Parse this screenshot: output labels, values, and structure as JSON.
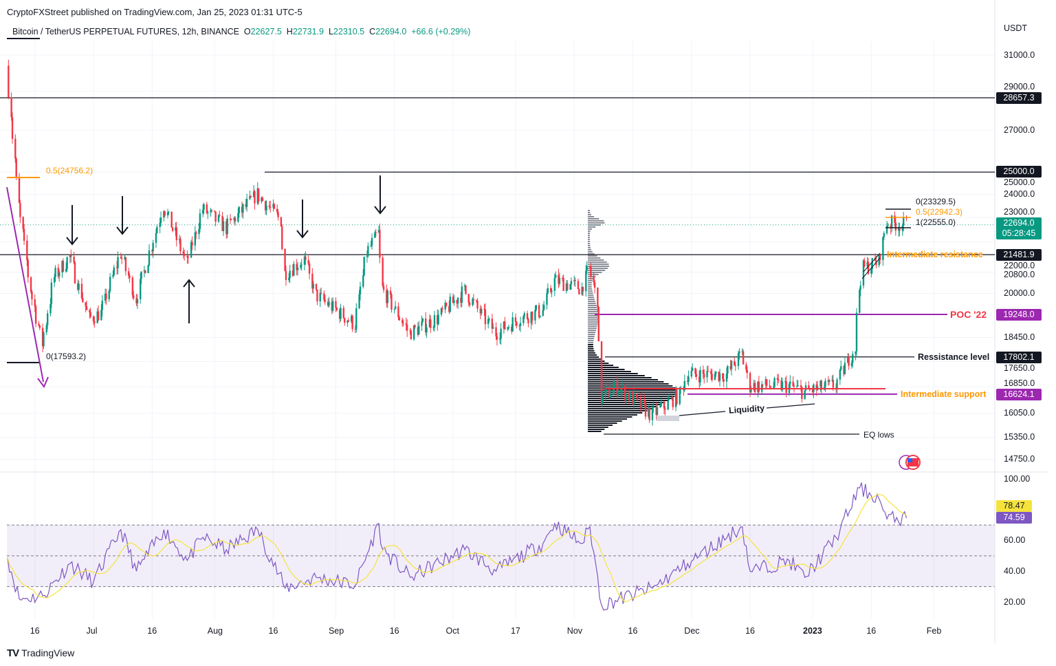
{
  "header": {
    "publisher": "CryptoFXStreet published on TradingView.com, Jan 25, 2023 01:31 UTC-5",
    "symbol": "Bitcoin / TetherUS PERPETUAL FUTURES, 12h, BINANCE",
    "open_label": "O",
    "open": "22627.5",
    "high_label": "H",
    "high": "22731.9",
    "low_label": "L",
    "low": "22310.5",
    "close_label": "C",
    "close": "22694.0",
    "change": "+66.6 (+0.29%)"
  },
  "footer": {
    "brand": "TradingView"
  },
  "colors": {
    "up": "#089981",
    "down": "#f23645",
    "rsi": "#7e57c2",
    "rsi_ma": "#f5e33c",
    "poc": "#9c27b0",
    "fib": "#ff9800",
    "grid": "#f0f3fa"
  },
  "chart_data": {
    "type": "candlestick",
    "timeframe": "12h",
    "currency_label": "USDT",
    "y_scale": "log",
    "ylim": [
      14500,
      31500
    ],
    "grid": true,
    "price_ticks": [
      "31000.0",
      "29000.0",
      "27000.0",
      "25000.0",
      "24000.0",
      "23000.0",
      "22000.0",
      "20800.0",
      "20000.0",
      "18450.0",
      "17650.0",
      "16850.0",
      "16050.0",
      "15350.0",
      "14750.0"
    ],
    "time_ticks": [
      {
        "label": "16",
        "date": "2022-06-16"
      },
      {
        "label": "Jul",
        "date": "2022-07-01"
      },
      {
        "label": "16",
        "date": "2022-07-16"
      },
      {
        "label": "Aug",
        "date": "2022-08-01"
      },
      {
        "label": "16",
        "date": "2022-08-16"
      },
      {
        "label": "Sep",
        "date": "2022-09-01"
      },
      {
        "label": "16",
        "date": "2022-09-16"
      },
      {
        "label": "Oct",
        "date": "2022-10-01"
      },
      {
        "label": "17",
        "date": "2022-10-17"
      },
      {
        "label": "Nov",
        "date": "2022-11-01"
      },
      {
        "label": "16",
        "date": "2022-11-16"
      },
      {
        "label": "Dec",
        "date": "2022-12-01"
      },
      {
        "label": "16",
        "date": "2022-12-16"
      },
      {
        "label": "2023",
        "date": "2023-01-01",
        "bold": true
      },
      {
        "label": "16",
        "date": "2023-01-16"
      },
      {
        "label": "Feb",
        "date": "2023-02-01"
      }
    ],
    "price_path": [
      [
        "2022-06-09",
        30400
      ],
      [
        "2022-06-12",
        23480
      ],
      [
        "2022-06-15",
        20170
      ],
      [
        "2022-06-18",
        18240
      ],
      [
        "2022-06-21",
        20600
      ],
      [
        "2022-06-25",
        21400
      ],
      [
        "2022-06-30",
        19100
      ],
      [
        "2022-07-03",
        19300
      ],
      [
        "2022-07-08",
        21540
      ],
      [
        "2022-07-12",
        19800
      ],
      [
        "2022-07-19",
        23530
      ],
      [
        "2022-07-25",
        21140
      ],
      [
        "2022-07-29",
        23370
      ],
      [
        "2022-08-04",
        22560
      ],
      [
        "2022-08-12",
        24000
      ],
      [
        "2022-08-18",
        22890
      ],
      [
        "2022-08-19",
        20760
      ],
      [
        "2022-08-24",
        21300
      ],
      [
        "2022-08-27",
        19950
      ],
      [
        "2022-09-06",
        18900
      ],
      [
        "2022-09-09",
        21550
      ],
      [
        "2022-09-12",
        22350
      ],
      [
        "2022-09-13",
        20170
      ],
      [
        "2022-09-20",
        18600
      ],
      [
        "2022-09-27",
        19100
      ],
      [
        "2022-10-04",
        20100
      ],
      [
        "2022-10-12",
        18600
      ],
      [
        "2022-10-18",
        19100
      ],
      [
        "2022-10-24",
        19400
      ],
      [
        "2022-10-27",
        20500
      ],
      [
        "2022-11-03",
        20200
      ],
      [
        "2022-11-05",
        20950
      ],
      [
        "2022-11-07",
        19800
      ],
      [
        "2022-11-08",
        16470
      ],
      [
        "2022-11-12",
        16860
      ],
      [
        "2022-11-21",
        16000
      ],
      [
        "2022-11-28",
        16600
      ],
      [
        "2022-11-30",
        17240
      ],
      [
        "2022-12-10",
        17240
      ],
      [
        "2022-12-14",
        17900
      ],
      [
        "2022-12-16",
        16880
      ],
      [
        "2022-12-26",
        16880
      ],
      [
        "2022-12-30",
        16700
      ],
      [
        "2023-01-07",
        16910
      ],
      [
        "2023-01-12",
        18130
      ],
      [
        "2023-01-13",
        20200
      ],
      [
        "2023-01-14",
        20950
      ],
      [
        "2023-01-18",
        21200
      ],
      [
        "2023-01-20",
        22780
      ],
      [
        "2023-01-25",
        22694
      ]
    ],
    "last_price": {
      "value": "22694.0",
      "countdown": "05:28:45"
    },
    "levels": [
      {
        "value": 28657.3,
        "label": "28657.3",
        "color": "#131722"
      },
      {
        "value": 25000.0,
        "label": "25000.0",
        "color": "#131722"
      },
      {
        "value": 21481.9,
        "label": "21481.9",
        "color": "#131722",
        "text": "Intermediate resistance"
      },
      {
        "value": 19248.0,
        "label": "19248.0",
        "color": "#9c27b0",
        "text": "POC '22"
      },
      {
        "value": 17802.1,
        "label": "17802.1",
        "color": "#131722",
        "text": "Ressistance level"
      },
      {
        "value": 16624.1,
        "label": "16624.1",
        "color": "#9c27b0",
        "text": "Intermediate support"
      }
    ],
    "annotations": {
      "eq_lows": "EQ lows",
      "liquidity": "Liquidity",
      "fib_left": {
        "top": "0.5(24756.2)",
        "bottom": "0(17593.2)"
      },
      "fib_right": {
        "top": "0(23329.5)",
        "mid": "0.5(22942.3)",
        "bottom": "1(22555.0)"
      }
    },
    "rsi": {
      "ticks": [
        "100.00",
        "60.00",
        "40.00",
        "20.00"
      ],
      "bands": [
        30,
        50,
        70
      ],
      "value_label": "74.59",
      "ma_label": "78.47",
      "path": [
        [
          "2022-06-09",
          49
        ],
        [
          "2022-06-12",
          22
        ],
        [
          "2022-06-18",
          24
        ],
        [
          "2022-06-25",
          45
        ],
        [
          "2022-07-01",
          33
        ],
        [
          "2022-07-08",
          67
        ],
        [
          "2022-07-12",
          40
        ],
        [
          "2022-07-19",
          67
        ],
        [
          "2022-07-25",
          47
        ],
        [
          "2022-07-29",
          62
        ],
        [
          "2022-08-04",
          54
        ],
        [
          "2022-08-12",
          67
        ],
        [
          "2022-08-19",
          29
        ],
        [
          "2022-08-27",
          36
        ],
        [
          "2022-09-06",
          31
        ],
        [
          "2022-09-12",
          71
        ],
        [
          "2022-09-13",
          54
        ],
        [
          "2022-09-20",
          36
        ],
        [
          "2022-10-04",
          54
        ],
        [
          "2022-10-12",
          40
        ],
        [
          "2022-10-24",
          58
        ],
        [
          "2022-10-27",
          71
        ],
        [
          "2022-11-03",
          58
        ],
        [
          "2022-11-05",
          69
        ],
        [
          "2022-11-08",
          18
        ],
        [
          "2022-11-21",
          29
        ],
        [
          "2022-11-30",
          45
        ],
        [
          "2022-12-14",
          69
        ],
        [
          "2022-12-16",
          40
        ],
        [
          "2022-12-26",
          47
        ],
        [
          "2022-12-30",
          36
        ],
        [
          "2023-01-07",
          62
        ],
        [
          "2023-01-13",
          94
        ],
        [
          "2023-01-18",
          87
        ],
        [
          "2023-01-20",
          74
        ],
        [
          "2023-01-25",
          74.59
        ]
      ]
    }
  }
}
